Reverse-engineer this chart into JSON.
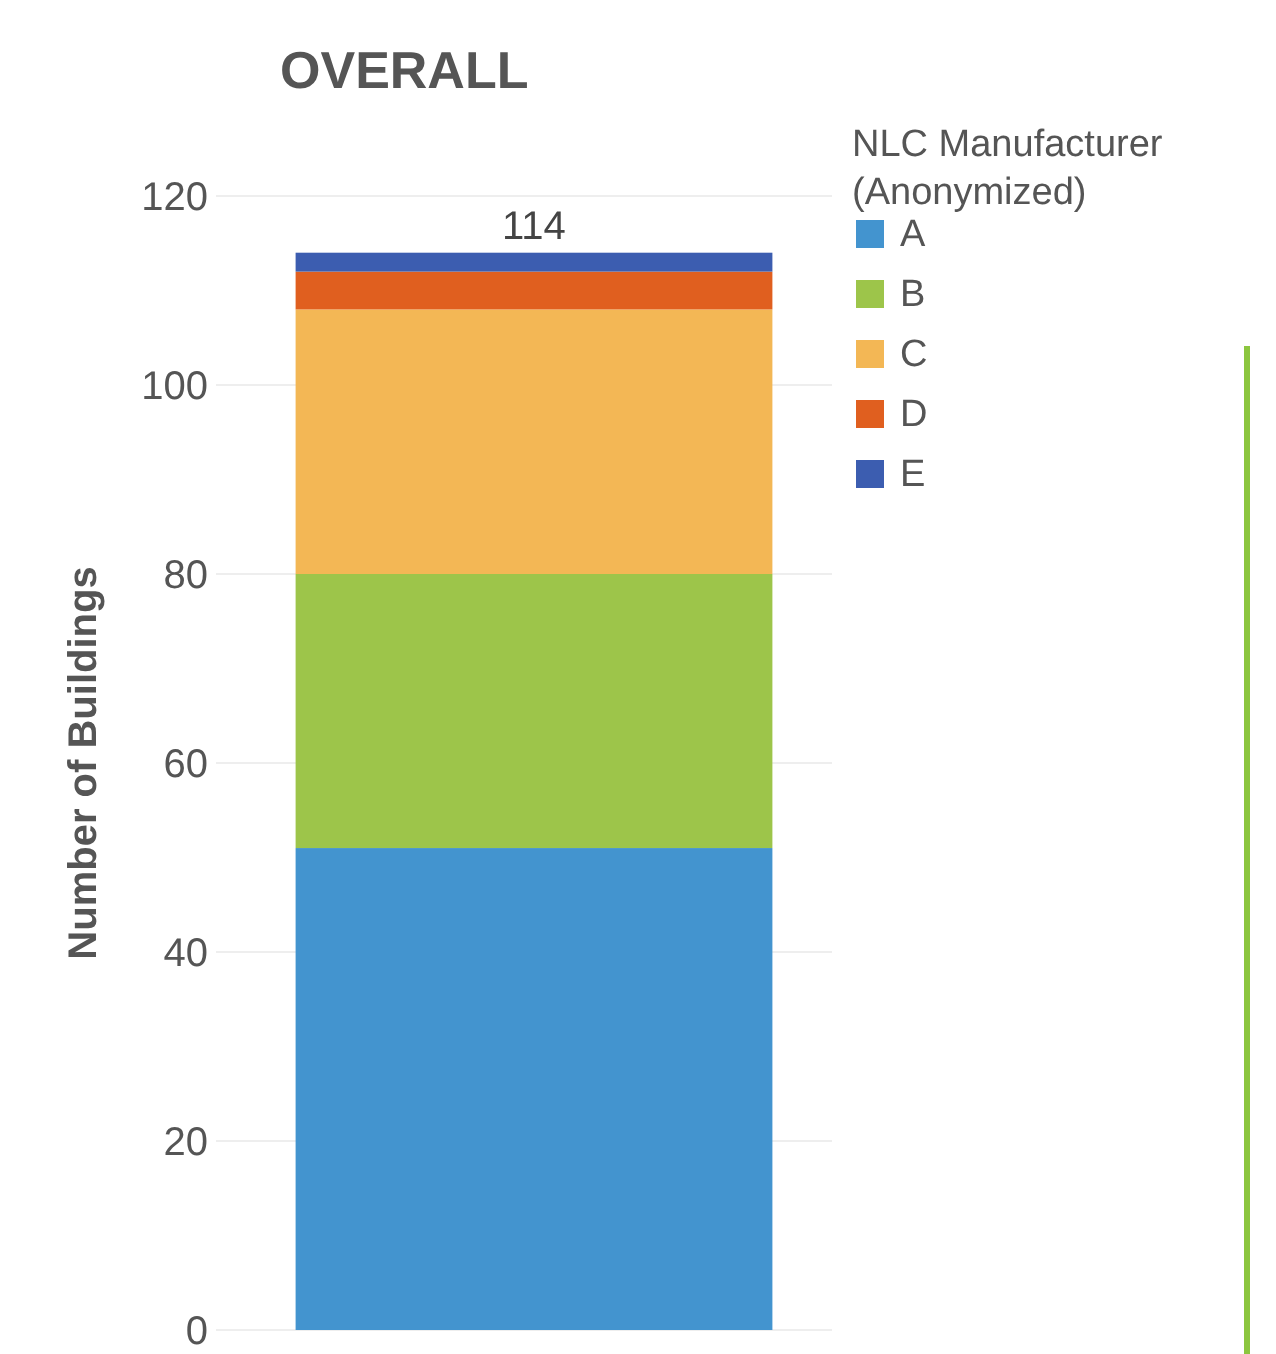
{
  "chart_data": {
    "type": "bar",
    "title": "OVERALL",
    "ylabel": "Number of Buildings",
    "legend_title": "NLC Manufacturer\n(Anonymized)",
    "categories": [
      null
    ],
    "stacked": true,
    "series": [
      {
        "name": "A",
        "color": "#4394cf",
        "values": [
          51
        ]
      },
      {
        "name": "B",
        "color": "#9dc54a",
        "values": [
          29
        ]
      },
      {
        "name": "C",
        "color": "#f3b755",
        "values": [
          28
        ]
      },
      {
        "name": "D",
        "color": "#e05f1f",
        "values": [
          4
        ]
      },
      {
        "name": "E",
        "color": "#3c5db0",
        "values": [
          2
        ]
      }
    ],
    "totals": [
      "114"
    ],
    "ylim": [
      0,
      120
    ],
    "yticks": [
      0,
      20,
      40,
      60,
      80,
      100,
      120
    ],
    "grid": "y",
    "legend": "top right"
  }
}
